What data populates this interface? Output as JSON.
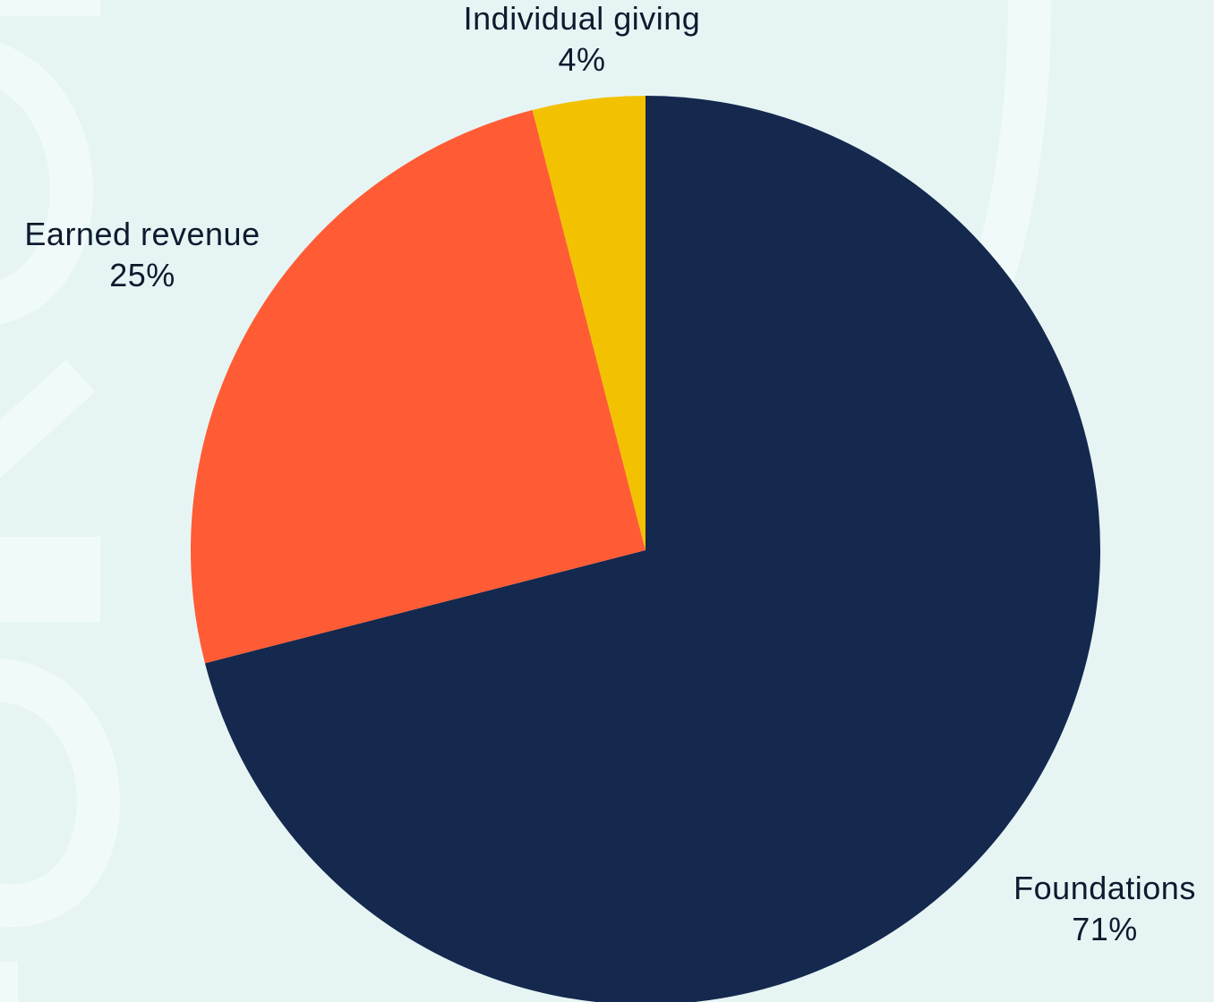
{
  "chart_data": {
    "type": "pie",
    "slices": [
      {
        "label": "Foundations",
        "value": 71,
        "value_label": "71%",
        "color": "#15284e"
      },
      {
        "label": "Earned revenue",
        "value": 25,
        "value_label": "25%",
        "color": "#ff5c35"
      },
      {
        "label": "Individual giving",
        "value": 4,
        "value_label": "4%",
        "color": "#f2c200"
      }
    ],
    "start": "12 o'clock",
    "direction": "clockwise",
    "legend": "none",
    "labels_position": "outside"
  },
  "colors": {
    "background": "#e6f5f4",
    "decoration": "#f0fafa"
  }
}
